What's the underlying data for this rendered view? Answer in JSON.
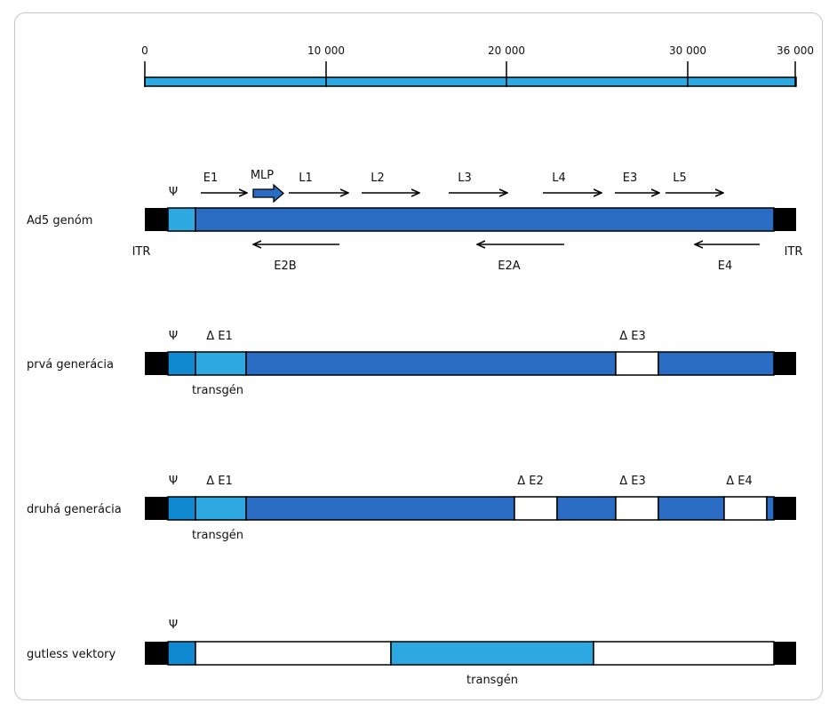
{
  "colors": {
    "dark_blue": "#2a6cc4",
    "light_blue": "#2ea8e0",
    "psi_blue": "#0f8ad1",
    "itr_black": "#000000",
    "scale_blue": "#2ea8e0",
    "deleted": "#ffffff"
  },
  "scale": {
    "ticks": [
      {
        "label": "0",
        "value": 0
      },
      {
        "label": "10 000",
        "value": 10000
      },
      {
        "label": "20 000",
        "value": 20000
      },
      {
        "label": "30 000",
        "value": 30000
      },
      {
        "label": "36 000",
        "value": 36000
      }
    ]
  },
  "rows": {
    "ad5": {
      "label": "Ad5 genóm",
      "psi": "Ψ",
      "itr_left": "ITR",
      "itr_right": "ITR",
      "forward": [
        {
          "label": "E1"
        },
        {
          "label": "MLP"
        },
        {
          "label": "L1"
        },
        {
          "label": "L2"
        },
        {
          "label": "L3"
        },
        {
          "label": "L4"
        },
        {
          "label": "E3"
        },
        {
          "label": "L5"
        }
      ],
      "reverse": [
        {
          "label": "E2B"
        },
        {
          "label": "E2A"
        },
        {
          "label": "E4"
        }
      ]
    },
    "first": {
      "label": "prvá generácia",
      "psi": "Ψ",
      "delta_e1": "Δ E1",
      "delta_e3": "Δ E3",
      "transgene": "transgén"
    },
    "second": {
      "label": "druhá generácia",
      "psi": "Ψ",
      "delta_e1": "Δ E1",
      "delta_e2": "Δ E2",
      "delta_e3": "Δ E3",
      "delta_e4": "Δ E4",
      "transgene": "transgén"
    },
    "gutless": {
      "label": "gutless vektory",
      "psi": "Ψ",
      "transgene": "transgén"
    }
  }
}
